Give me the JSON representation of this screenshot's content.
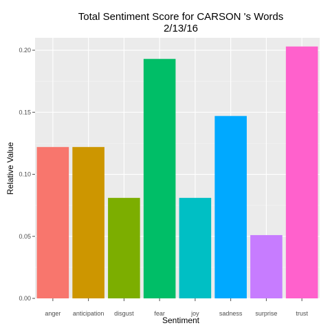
{
  "chart_data": {
    "type": "bar",
    "title": "Total Sentiment Score for CARSON 's Words",
    "subtitle": "2/13/16",
    "xlabel": "Sentiment",
    "ylabel": "Relative Value",
    "categories": [
      "anger",
      "anticipation",
      "disgust",
      "fear",
      "joy",
      "sadness",
      "surprise",
      "trust"
    ],
    "values": [
      0.122,
      0.122,
      0.081,
      0.193,
      0.081,
      0.147,
      0.051,
      0.203
    ],
    "colors": [
      "#F8766D",
      "#CD9600",
      "#7CAE00",
      "#00BE67",
      "#00BFC4",
      "#00A9FF",
      "#C77CFF",
      "#FF61CC"
    ],
    "ylim": [
      0,
      0.21
    ],
    "yticks": [
      0.0,
      0.05,
      0.1,
      0.15,
      0.2
    ],
    "ytick_labels": [
      "0.00",
      "0.05",
      "0.10",
      "0.15",
      "0.20"
    ],
    "grid": true,
    "legend": "none",
    "background_color": "#EBEBEB",
    "grid_color": "#FFFFFF"
  }
}
